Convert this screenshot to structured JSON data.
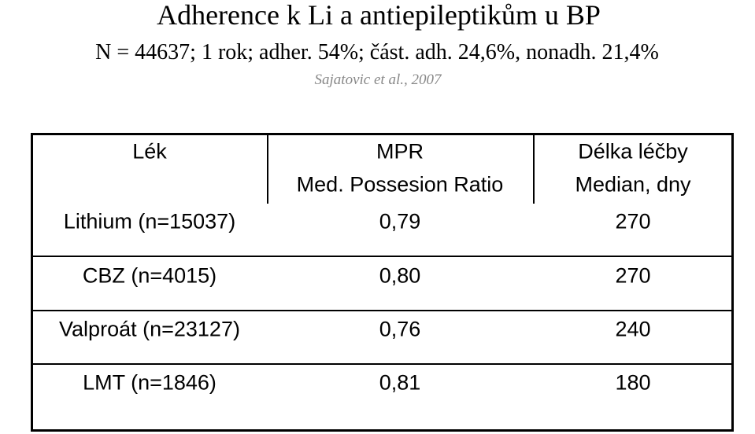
{
  "header": {
    "title": "Adherence k Li a antiepileptikům u BP",
    "subtitle": "N = 44637; 1 rok; adher. 54%; část. adh. 24,6%, nonadh. 21,4%",
    "citation": "Sajatovic et al., 2007"
  },
  "table": {
    "header": [
      [
        "Lék"
      ],
      [
        "MPR",
        "Med. Possesion Ratio"
      ],
      [
        "Délka léčby",
        "Median, dny"
      ]
    ],
    "rows": [
      [
        "Lithium (n=15037)",
        "0,79",
        "270"
      ],
      [
        "CBZ (n=4015)",
        "0,80",
        "270"
      ],
      [
        "Valproát (n=23127)",
        "0,76",
        "240"
      ],
      [
        "LMT (n=1846)",
        "0,81",
        "180"
      ]
    ]
  }
}
